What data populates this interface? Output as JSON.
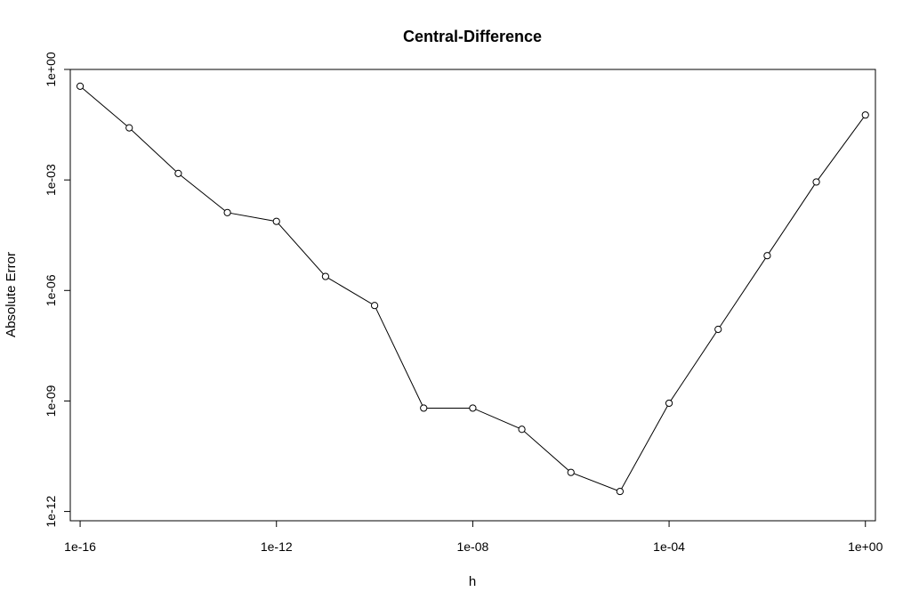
{
  "chart_data": {
    "type": "line",
    "title": "Central-Difference",
    "xlabel": "h",
    "ylabel": "Absolute Error",
    "x_scale": "log",
    "y_scale": "log",
    "xlim": [
      6.3e-17,
      1.6
    ],
    "ylim": [
      5.6e-13,
      1.0
    ],
    "grid": false,
    "legend": "none",
    "markers": "open-circle",
    "line_color": "#000000",
    "x_ticks": [
      {
        "value": 1e-16,
        "label": "1e-16"
      },
      {
        "value": 1e-12,
        "label": "1e-12"
      },
      {
        "value": 1e-08,
        "label": "1e-08"
      },
      {
        "value": 0.0001,
        "label": "1e-04"
      },
      {
        "value": 1,
        "label": "1e+00"
      }
    ],
    "y_ticks": [
      {
        "value": 1,
        "label": "1e+00"
      },
      {
        "value": 0.001,
        "label": "1e-03"
      },
      {
        "value": 1e-06,
        "label": "1e-06"
      },
      {
        "value": 1e-09,
        "label": "1e-09"
      },
      {
        "value": 1e-12,
        "label": "1e-12"
      }
    ],
    "series": [
      {
        "x": [
          1e-16,
          1e-15,
          1e-14,
          1e-13,
          1e-12,
          1e-11,
          1e-10,
          1e-09,
          1e-08,
          1e-07,
          1e-06,
          1e-05,
          0.0001,
          0.001,
          0.01,
          0.1,
          1
        ],
        "y": [
          0.35,
          0.026,
          0.0015,
          0.00013,
          7.5e-05,
          2.4e-06,
          3.9e-07,
          6.4e-10,
          6.4e-10,
          1.7e-10,
          1.15e-11,
          3.5e-12,
          8.7e-10,
          8.8e-08,
          8.8e-06,
          0.00088,
          0.058
        ]
      }
    ]
  }
}
